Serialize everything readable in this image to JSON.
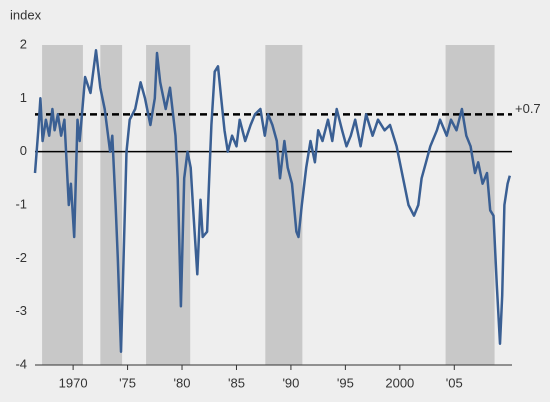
{
  "chart_data": {
    "type": "line",
    "y_axis_label": "index",
    "xlim": [
      1966.5,
      2010.3
    ],
    "xticks": [
      {
        "value": 1970,
        "label": "1970"
      },
      {
        "value": 1975,
        "label": "'75"
      },
      {
        "value": 1980,
        "label": "'80"
      },
      {
        "value": 1985,
        "label": "'85"
      },
      {
        "value": 1990,
        "label": "'90"
      },
      {
        "value": 1995,
        "label": "'95"
      },
      {
        "value": 2000,
        "label": "2000"
      },
      {
        "value": 2005,
        "label": "'05"
      }
    ],
    "ylim": [
      -4,
      2
    ],
    "yticks": [
      -4,
      -3,
      -2,
      -1,
      0,
      1,
      2
    ],
    "shaded_periods": [
      [
        1967.15,
        1970.9
      ],
      [
        1972.5,
        1974.5
      ],
      [
        1976.7,
        1980.75
      ],
      [
        1987.65,
        1991.05
      ],
      [
        2004.2,
        2008.7
      ]
    ],
    "shade_color": "#c8c8c8",
    "reference_lines": [
      {
        "value": 0.7,
        "label": "+0.7"
      }
    ],
    "series": [
      {
        "color": "#3a5f93",
        "x": [
          1966.5,
          1966.8,
          1967.0,
          1967.2,
          1967.5,
          1967.8,
          1968.1,
          1968.3,
          1968.6,
          1968.9,
          1969.2,
          1969.4,
          1969.6,
          1969.8,
          1970.1,
          1970.4,
          1970.6,
          1971.1,
          1971.6,
          1972.1,
          1972.5,
          1972.9,
          1973.4,
          1973.6,
          1973.9,
          1974.1,
          1974.4,
          1974.9,
          1975.2,
          1975.7,
          1976.2,
          1976.6,
          1977.1,
          1977.5,
          1977.7,
          1978.0,
          1978.5,
          1978.9,
          1979.4,
          1979.6,
          1979.9,
          1980.2,
          1980.5,
          1980.8,
          1981.0,
          1981.4,
          1981.7,
          1981.9,
          1982.3,
          1982.5,
          1982.7,
          1983.0,
          1983.3,
          1983.6,
          1983.9,
          1984.2,
          1984.6,
          1985.0,
          1985.3,
          1985.8,
          1986.3,
          1986.7,
          1987.2,
          1987.6,
          1987.9,
          1988.3,
          1988.7,
          1989.0,
          1989.4,
          1989.7,
          1990.1,
          1990.5,
          1990.7,
          1991.0,
          1991.4,
          1991.8,
          1992.2,
          1992.5,
          1992.9,
          1993.4,
          1993.8,
          1994.2,
          1994.7,
          1995.1,
          1995.5,
          1995.9,
          1996.4,
          1996.9,
          1997.5,
          1998.0,
          1998.6,
          1999.1,
          1999.7,
          2000.2,
          2000.8,
          2001.3,
          2001.7,
          2002.0,
          2002.4,
          2002.8,
          2003.4,
          2003.7,
          2004.3,
          2004.7,
          2005.2,
          2005.7,
          2006.1,
          2006.5,
          2006.9,
          2007.2,
          2007.6,
          2008.0,
          2008.3,
          2008.6,
          2008.9,
          2009.2,
          2009.4,
          2009.6,
          2009.9,
          2010.1
        ],
        "values": [
          -0.4,
          0.4,
          1.0,
          0.2,
          0.6,
          0.3,
          0.8,
          0.4,
          0.7,
          0.3,
          0.6,
          -0.2,
          -1.0,
          -0.6,
          -1.6,
          0.6,
          0.2,
          1.4,
          1.1,
          1.9,
          1.2,
          0.8,
          0.0,
          0.3,
          -1.0,
          -2.0,
          -3.75,
          0.0,
          0.6,
          0.8,
          1.3,
          1.0,
          0.5,
          1.0,
          1.85,
          1.3,
          0.8,
          1.2,
          0.3,
          -0.5,
          -2.9,
          -0.5,
          0.0,
          -0.3,
          -1.0,
          -2.3,
          -0.9,
          -1.6,
          -1.5,
          -0.5,
          0.5,
          1.5,
          1.6,
          1.0,
          0.4,
          0.0,
          0.3,
          0.1,
          0.6,
          0.2,
          0.5,
          0.7,
          0.8,
          0.3,
          0.7,
          0.5,
          0.2,
          -0.5,
          0.2,
          -0.3,
          -0.6,
          -1.5,
          -1.6,
          -1.0,
          -0.3,
          0.2,
          -0.2,
          0.4,
          0.2,
          0.6,
          0.2,
          0.8,
          0.4,
          0.1,
          0.3,
          0.6,
          0.1,
          0.7,
          0.3,
          0.6,
          0.4,
          0.5,
          0.1,
          -0.4,
          -1.0,
          -1.2,
          -1.0,
          -0.5,
          -0.2,
          0.1,
          0.4,
          0.6,
          0.3,
          0.6,
          0.4,
          0.8,
          0.3,
          0.1,
          -0.4,
          -0.2,
          -0.6,
          -0.4,
          -1.1,
          -1.2,
          -2.5,
          -3.6,
          -2.7,
          -1.0,
          -0.6,
          -0.45
        ]
      }
    ]
  }
}
